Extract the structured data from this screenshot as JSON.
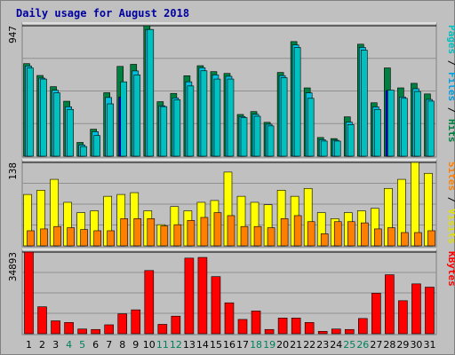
{
  "chart_data": {
    "type": "bar",
    "title": "Daily usage for August 2018",
    "categories": [
      "1",
      "2",
      "3",
      "4",
      "5",
      "6",
      "7",
      "8",
      "9",
      "10",
      "11",
      "12",
      "13",
      "14",
      "15",
      "16",
      "17",
      "18",
      "19",
      "20",
      "21",
      "22",
      "23",
      "24",
      "25",
      "26",
      "27",
      "28",
      "29",
      "30",
      "31"
    ],
    "weekend_days": [
      "4",
      "5",
      "11",
      "12",
      "18",
      "19",
      "25",
      "26"
    ],
    "colors": {
      "background": "#c0c0c0",
      "frame": "#ffffff",
      "title": "#0000a0",
      "pages": "#00c0c0",
      "files": "#00c0e0",
      "hits": "#008040",
      "files_alt": "#0000ff",
      "sites": "#ffff00",
      "visits": "#ff8000",
      "kbytes": "#ff0000",
      "weekend_label": "#00805c",
      "weekday_label": "#000000"
    },
    "panels": [
      {
        "id": "hits",
        "ymax_label": "947",
        "ymax": 947,
        "side_label_parts": [
          {
            "text": "Pages",
            "color": "#00c0c0"
          },
          {
            "text": " / ",
            "color": "#000000"
          },
          {
            "text": "Files",
            "color": "#00a0e0"
          },
          {
            "text": " / ",
            "color": "#000000"
          },
          {
            "text": "Hits",
            "color": "#008040"
          }
        ],
        "series": [
          {
            "name": "Hits",
            "values": [
              672,
              586,
              505,
              399,
              100,
              196,
              461,
              652,
              667,
              947,
              396,
              456,
              584,
              657,
              614,
              601,
              303,
              324,
              246,
              608,
              832,
              496,
              136,
              128,
              286,
              813,
              388,
              641,
              496,
              529,
              452
            ]
          },
          {
            "name": "Files",
            "values": [
              655,
              567,
              479,
              359,
              82,
              178,
              426,
              430,
              619,
              920,
              366,
              423,
              540,
              642,
              590,
              580,
              288,
              304,
              232,
              585,
              808,
              460,
              120,
              116,
              248,
              790,
              358,
              477,
              430,
              490,
              412
            ]
          },
          {
            "name": "Pages",
            "values": [
              640,
              560,
              460,
              340,
              70,
              150,
              380,
              540,
              590,
              920,
              360,
              410,
              510,
              620,
              560,
              560,
              280,
              290,
              220,
              570,
              790,
              420,
              110,
              110,
              230,
              770,
              340,
              480,
              420,
              470,
              400
            ]
          }
        ]
      },
      {
        "id": "visits",
        "ymax_label": "138",
        "ymax": 138,
        "side_label_parts": [
          {
            "text": "Sites",
            "color": "#ff8000"
          },
          {
            "text": " / ",
            "color": "#000000"
          },
          {
            "text": "Visits",
            "color": "#e0e000"
          }
        ],
        "series": [
          {
            "name": "Visits",
            "values": [
              85,
              92,
              110,
              72,
              55,
              58,
              82,
              85,
              88,
              58,
              35,
              65,
              58,
              72,
              75,
              122,
              82,
              72,
              68,
              92,
              82,
              95,
              55,
              45,
              55,
              58,
              62,
              95,
              110,
              138,
              120
            ]
          },
          {
            "name": "Sites",
            "values": [
              25,
              28,
              32,
              30,
              27,
              25,
              25,
              45,
              45,
              45,
              33,
              35,
              42,
              47,
              55,
              50,
              32,
              32,
              30,
              45,
              50,
              40,
              20,
              40,
              40,
              38,
              28,
              30,
              22,
              22,
              25
            ]
          }
        ]
      },
      {
        "id": "kbytes",
        "ymax_label": "34893",
        "ymax": 34893,
        "side_label_parts": [
          {
            "text": "KBytes",
            "color": "#ff0000"
          }
        ],
        "series": [
          {
            "name": "KBytes",
            "values": [
              34893,
              11500,
              5500,
              4800,
              2000,
              1800,
              3800,
              8500,
              10200,
              27000,
              4000,
              7500,
              32300,
              32600,
              24400,
              13200,
              6100,
              9700,
              1800,
              6700,
              6700,
              4800,
              1000,
              2000,
              1800,
              6500,
              17300,
              25200,
              14100,
              21300,
              19900
            ]
          }
        ]
      }
    ]
  }
}
